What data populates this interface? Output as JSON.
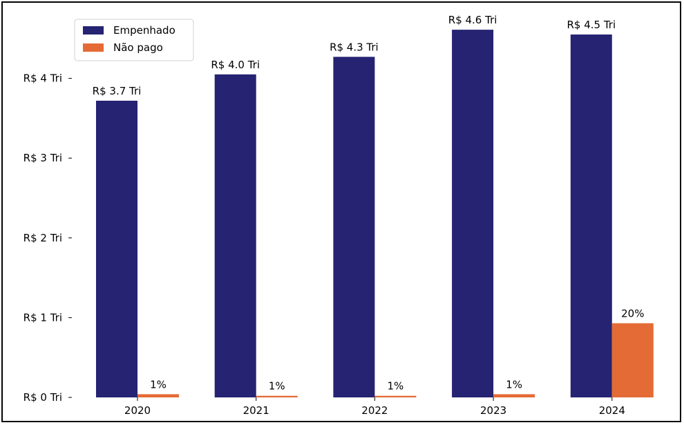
{
  "caption_fragment": "",
  "chart_data": {
    "type": "bar",
    "title": "",
    "xlabel": "",
    "ylabel": "",
    "categories": [
      "2020",
      "2021",
      "2022",
      "2023",
      "2024"
    ],
    "series": [
      {
        "name": "Empenhado",
        "color": "#252372",
        "values": [
          3.72,
          4.05,
          4.27,
          4.61,
          4.55
        ],
        "labels": [
          "R$ 3.7 Tri",
          "R$ 4.0 Tri",
          "R$ 4.3 Tri",
          "R$ 4.6 Tri",
          "R$ 4.5 Tri"
        ]
      },
      {
        "name": "Não pago",
        "color": "#e46b35",
        "values": [
          0.04,
          0.02,
          0.02,
          0.04,
          0.93
        ],
        "labels": [
          "1%",
          "1%",
          "1%",
          "1%",
          "20%"
        ]
      }
    ],
    "yticks": [
      0,
      1,
      2,
      3,
      4
    ],
    "ytick_labels": [
      "R$ 0 Tri",
      "R$ 1 Tri",
      "R$ 2 Tri",
      "R$ 3 Tri",
      "R$ 4 Tri"
    ],
    "ylim": [
      0,
      4.8
    ],
    "legend": {
      "position": "top-left"
    },
    "grid": false
  }
}
